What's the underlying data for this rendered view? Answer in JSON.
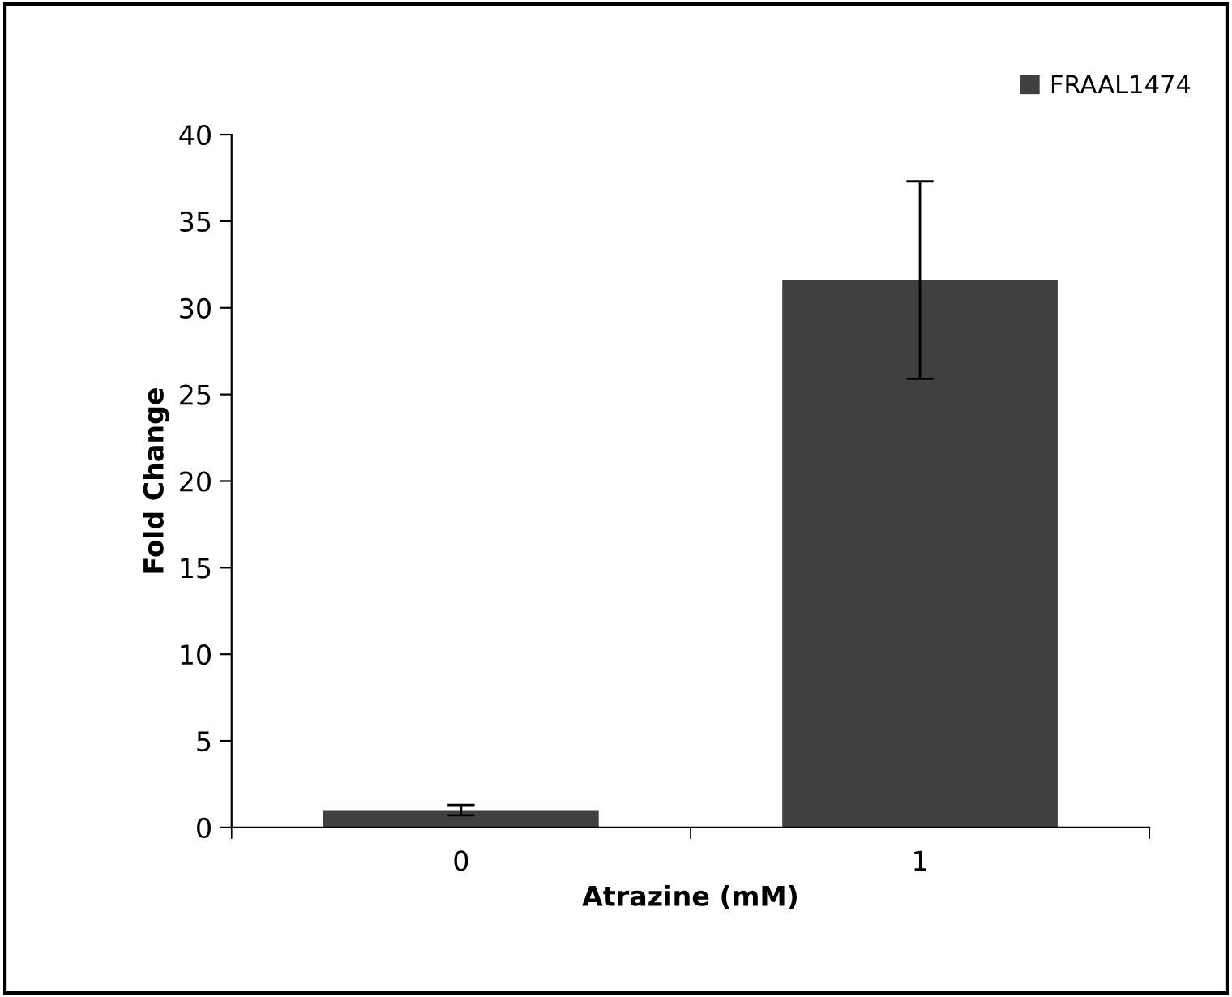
{
  "chart_data": {
    "type": "bar",
    "xlabel": "Atrazine (mM)",
    "ylabel": "Fold Change",
    "categories": [
      "0",
      "1"
    ],
    "series": [
      {
        "name": "FRAAL1474",
        "color": "#404040",
        "values": [
          1.0,
          31.6
        ],
        "errors": [
          0.3,
          5.7
        ]
      }
    ],
    "ylim": [
      0,
      40
    ],
    "yticks": [
      0,
      5,
      10,
      15,
      20,
      25,
      30,
      35,
      40
    ],
    "grid": false,
    "legend": "top right"
  }
}
